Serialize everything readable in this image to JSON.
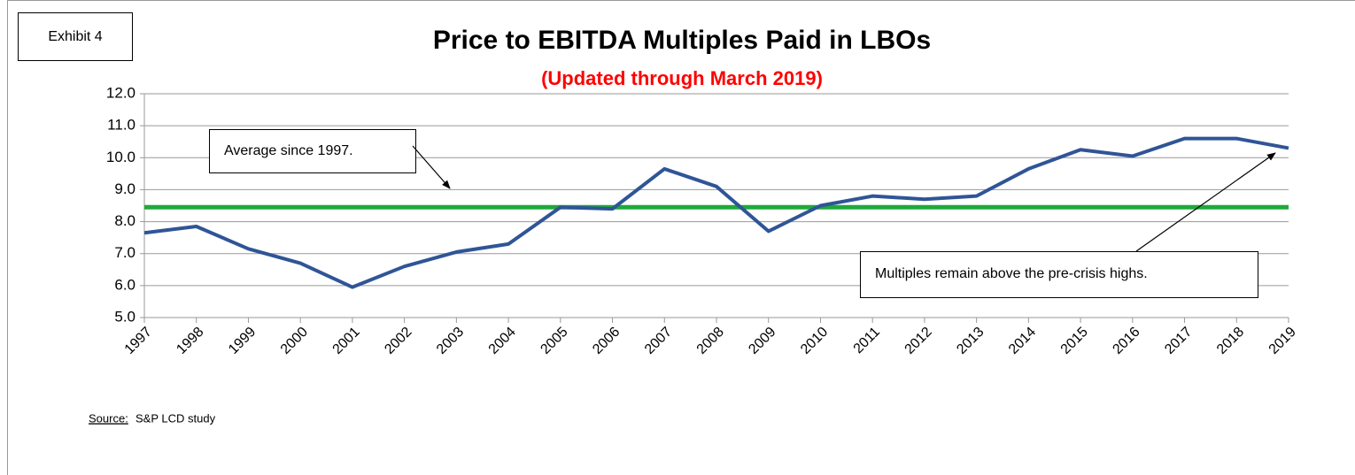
{
  "chart_data": {
    "type": "line",
    "exhibit": "Exhibit 4",
    "title": "Price to EBITDA Multiples Paid in LBOs",
    "subtitle": "(Updated through March 2019)",
    "categories": [
      "1997",
      "1998",
      "1999",
      "2000",
      "2001",
      "2002",
      "2003",
      "2004",
      "2005",
      "2006",
      "2007",
      "2008",
      "2009",
      "2010",
      "2011",
      "2012",
      "2013",
      "2014",
      "2015",
      "2016",
      "2017",
      "2018",
      "2019"
    ],
    "values": [
      7.65,
      7.85,
      7.15,
      6.7,
      5.95,
      6.6,
      7.05,
      7.3,
      8.45,
      8.4,
      9.65,
      9.1,
      7.7,
      8.5,
      8.8,
      8.7,
      8.8,
      9.65,
      10.25,
      10.05,
      10.6,
      10.6,
      10.3
    ],
    "color": "#2f5597",
    "reference_line": {
      "value": 8.45,
      "color": "#1faa3a"
    },
    "ylim": [
      5,
      12
    ],
    "yticks": [
      {
        "value": 5,
        "label": "5.0"
      },
      {
        "value": 6,
        "label": "6.0"
      },
      {
        "value": 7,
        "label": "7.0"
      },
      {
        "value": 8,
        "label": "8.0"
      },
      {
        "value": 9,
        "label": "9.0"
      },
      {
        "value": 10,
        "label": "10.0"
      },
      {
        "value": 11,
        "label": "11.0"
      },
      {
        "value": 12,
        "label": "12.0"
      }
    ],
    "grid": true,
    "annotations": [
      "Average since 1997.",
      "Multiples remain above the pre-crisis highs."
    ],
    "source_label": "Source:",
    "source": "S&P LCD study"
  }
}
